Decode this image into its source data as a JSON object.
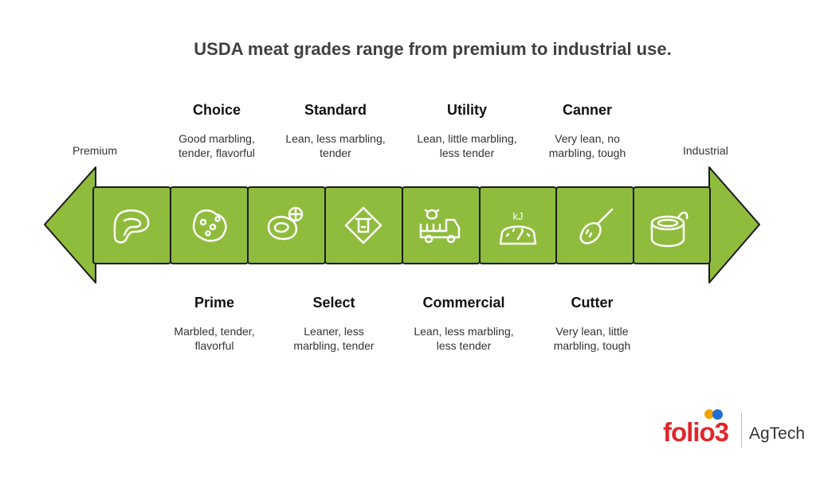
{
  "title": "USDA meat grades range from premium to industrial use.",
  "ends": {
    "left": "Premium",
    "right": "Industrial"
  },
  "top_grades": [
    {
      "name": "Choice",
      "desc1": "Good marbling,",
      "desc2": "tender, flavorful"
    },
    {
      "name": "Standard",
      "desc1": "Lean, less marbling,",
      "desc2": "tender"
    },
    {
      "name": "Utility",
      "desc1": "Lean, little marbling,",
      "desc2": "less tender"
    },
    {
      "name": "Canner",
      "desc1": "Very lean, no",
      "desc2": "marbling, tough"
    }
  ],
  "bottom_grades": [
    {
      "name": "Prime",
      "desc1": "Marbled, tender,",
      "desc2": "flavorful"
    },
    {
      "name": "Select",
      "desc1": "Leaner, less",
      "desc2": "marbling, tender"
    },
    {
      "name": "Commercial",
      "desc1": "Lean, less marbling,",
      "desc2": "less tender"
    },
    {
      "name": "Cutter",
      "desc1": "Very lean, little",
      "desc2": "marbling, tough"
    }
  ],
  "icons": [
    "steak-icon",
    "marbled-meat-icon",
    "meat-shrimp-icon",
    "cow-sign-icon",
    "cattle-truck-icon",
    "kilojoule-scale-icon",
    "cutting-knife-icon",
    "canned-food-icon"
  ],
  "scale_label": "kJ",
  "colors": {
    "segment": "#8fbc3c",
    "stroke": "#1a1a1a",
    "icon": "#ffffff"
  },
  "logo": {
    "brand": "folio3",
    "product": "AgTech"
  }
}
